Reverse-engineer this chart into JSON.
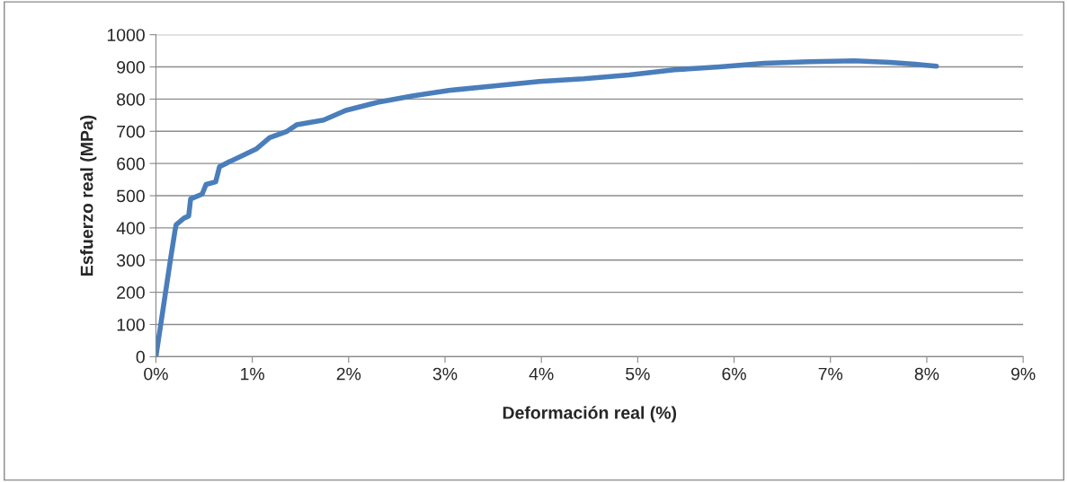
{
  "chart_data": {
    "type": "line",
    "xlabel": "Deformación real (%)",
    "ylabel": "Esfuerzo real (MPa)",
    "xlim": [
      0,
      9
    ],
    "xticks": [
      {
        "value": 0,
        "label": "0%"
      },
      {
        "value": 1,
        "label": "1%"
      },
      {
        "value": 2,
        "label": "2%"
      },
      {
        "value": 3,
        "label": "3%"
      },
      {
        "value": 4,
        "label": "4%"
      },
      {
        "value": 5,
        "label": "5%"
      },
      {
        "value": 6,
        "label": "6%"
      },
      {
        "value": 7,
        "label": "7%"
      },
      {
        "value": 8,
        "label": "8%"
      },
      {
        "value": 9,
        "label": "9%"
      }
    ],
    "ylim": [
      0,
      1000
    ],
    "yticks": [
      0,
      100,
      200,
      300,
      400,
      500,
      600,
      700,
      800,
      900,
      1000
    ],
    "grid": "y",
    "marker": "none",
    "line_style": "solid",
    "series": [
      {
        "color": "#4a7ebb",
        "x": [
          0,
          0.15,
          0.2,
          0.21,
          0.29,
          0.34,
          0.36,
          0.48,
          0.52,
          0.62,
          0.66,
          0.76,
          0.9,
          1.04,
          1.18,
          1.36,
          1.46,
          1.74,
          1.97,
          2.3,
          2.67,
          3.04,
          3.51,
          3.98,
          4.44,
          4.91,
          5.38,
          5.85,
          6.31,
          6.78,
          7.25,
          7.62,
          7.9,
          8.1
        ],
        "values": [
          0,
          300,
          395,
          410,
          430,
          437,
          490,
          505,
          535,
          543,
          590,
          605,
          625,
          645,
          680,
          700,
          720,
          735,
          765,
          790,
          810,
          827,
          841,
          855,
          863,
          875,
          891,
          900,
          911,
          916,
          919,
          914,
          908,
          902
        ]
      }
    ]
  }
}
